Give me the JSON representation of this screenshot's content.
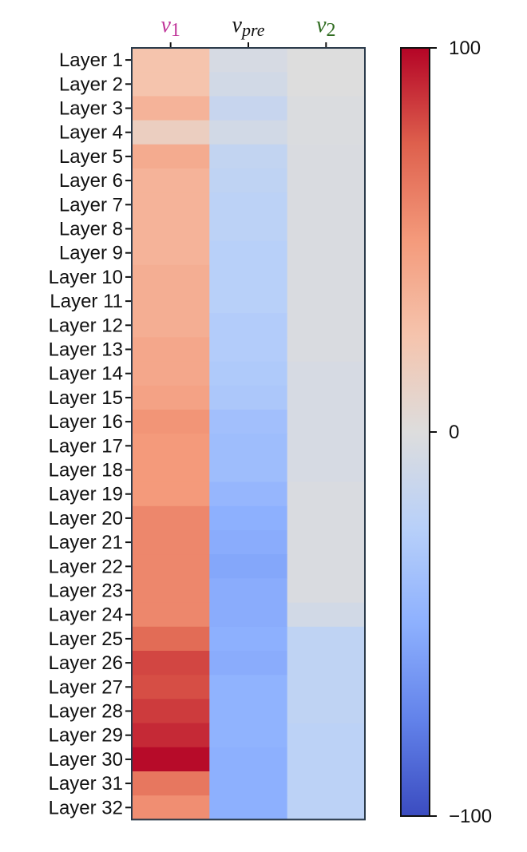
{
  "chart_data": {
    "type": "heatmap",
    "title": "",
    "xlabel": "",
    "ylabel": "",
    "columns": [
      {
        "symbol": "v",
        "subscript": "1",
        "color": "#c0369a"
      },
      {
        "symbol": "v",
        "subscript": "pre",
        "color": "#111111"
      },
      {
        "symbol": "v",
        "subscript": "2",
        "color": "#2e6b1f"
      }
    ],
    "rows": [
      "Layer 1",
      "Layer 2",
      "Layer 3",
      "Layer 4",
      "Layer 5",
      "Layer 6",
      "Layer 7",
      "Layer 8",
      "Layer 9",
      "Layer 10",
      "Layer 11",
      "Layer 12",
      "Layer 13",
      "Layer 14",
      "Layer 15",
      "Layer 16",
      "Layer 17",
      "Layer 18",
      "Layer 19",
      "Layer 20",
      "Layer 21",
      "Layer 22",
      "Layer 23",
      "Layer 24",
      "Layer 25",
      "Layer 26",
      "Layer 27",
      "Layer 28",
      "Layer 29",
      "Layer 30",
      "Layer 31",
      "Layer 32"
    ],
    "values": [
      [
        25,
        -5,
        0
      ],
      [
        25,
        -8,
        0
      ],
      [
        35,
        -15,
        -2
      ],
      [
        15,
        -8,
        -2
      ],
      [
        40,
        -18,
        -3
      ],
      [
        35,
        -20,
        -3
      ],
      [
        35,
        -22,
        -3
      ],
      [
        35,
        -22,
        -3
      ],
      [
        35,
        -25,
        -3
      ],
      [
        38,
        -25,
        -3
      ],
      [
        38,
        -25,
        -3
      ],
      [
        38,
        -28,
        -3
      ],
      [
        42,
        -28,
        -3
      ],
      [
        42,
        -30,
        -5
      ],
      [
        45,
        -32,
        -5
      ],
      [
        52,
        -38,
        -5
      ],
      [
        50,
        -40,
        -5
      ],
      [
        50,
        -40,
        -5
      ],
      [
        50,
        -45,
        -3
      ],
      [
        58,
        -50,
        -3
      ],
      [
        58,
        -52,
        -3
      ],
      [
        58,
        -55,
        -3
      ],
      [
        58,
        -52,
        -3
      ],
      [
        58,
        -52,
        -8
      ],
      [
        70,
        -50,
        -20
      ],
      [
        82,
        -52,
        -20
      ],
      [
        80,
        -48,
        -20
      ],
      [
        85,
        -48,
        -20
      ],
      [
        90,
        -48,
        -22
      ],
      [
        98,
        -50,
        -22
      ],
      [
        65,
        -50,
        -22
      ],
      [
        55,
        -50,
        -22
      ]
    ],
    "colorbar": {
      "min": -100,
      "max": 100,
      "ticks": [
        100,
        0,
        -100
      ],
      "tick_labels": [
        "100",
        "0",
        "−100"
      ],
      "colormap": "coolwarm"
    }
  }
}
